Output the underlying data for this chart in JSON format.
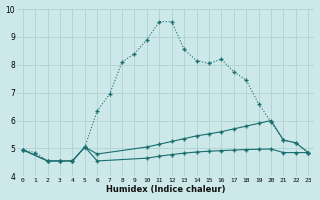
{
  "xlabel": "Humidex (Indice chaleur)",
  "bg_color": "#cce8e8",
  "grid_color": "#aacece",
  "line_color": "#1a6e6e",
  "xlim": [
    -0.5,
    23.5
  ],
  "ylim": [
    4.0,
    10.0
  ],
  "yticks": [
    4,
    5,
    6,
    7,
    8,
    9,
    10
  ],
  "xticks": [
    0,
    1,
    2,
    3,
    4,
    5,
    6,
    7,
    8,
    9,
    10,
    11,
    12,
    13,
    14,
    15,
    16,
    17,
    18,
    19,
    20,
    21,
    22,
    23
  ],
  "line1_x": [
    0,
    1,
    2,
    3,
    4,
    5,
    6,
    7,
    8,
    9,
    10,
    11,
    12,
    13,
    14,
    15,
    16,
    17,
    18,
    19,
    20,
    21,
    22,
    23
  ],
  "line1_y": [
    4.95,
    4.85,
    4.55,
    4.55,
    4.55,
    5.05,
    6.35,
    6.95,
    8.1,
    8.4,
    8.9,
    9.55,
    9.55,
    8.55,
    8.15,
    8.05,
    8.2,
    7.75,
    7.45,
    6.6,
    5.95,
    5.3,
    5.2,
    4.85
  ],
  "line2_x": [
    0,
    2,
    3,
    4,
    5,
    6,
    10,
    11,
    12,
    13,
    14,
    15,
    16,
    17,
    18,
    19,
    20,
    21,
    22,
    23
  ],
  "line2_y": [
    4.95,
    4.55,
    4.55,
    4.55,
    5.05,
    4.8,
    5.05,
    5.15,
    5.25,
    5.35,
    5.45,
    5.52,
    5.6,
    5.7,
    5.8,
    5.9,
    6.0,
    5.3,
    5.2,
    4.85
  ],
  "line3_x": [
    0,
    2,
    3,
    4,
    5,
    6,
    10,
    11,
    12,
    13,
    14,
    15,
    16,
    17,
    18,
    19,
    20,
    21,
    22,
    23
  ],
  "line3_y": [
    4.95,
    4.55,
    4.55,
    4.55,
    5.05,
    4.55,
    4.65,
    4.72,
    4.78,
    4.83,
    4.87,
    4.9,
    4.92,
    4.94,
    4.96,
    4.97,
    4.98,
    4.85,
    4.85,
    4.85
  ]
}
